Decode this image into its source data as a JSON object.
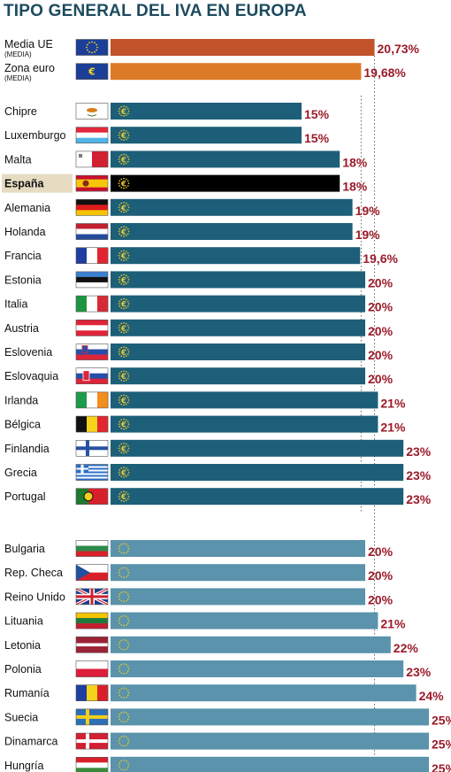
{
  "chart_data": {
    "type": "bar",
    "orientation": "horizontal",
    "title": "TIPO GENERAL DEL IVA EN EUROPA",
    "xlim": [
      0,
      25
    ],
    "colors": {
      "media_ue": "#c0532a",
      "zona_euro": "#dd7a28",
      "euro_zone_countries": "#1d5f78",
      "spain": "#000000",
      "non_euro_countries": "#5a93ab",
      "value_text": "#9b1b2a",
      "highlight_bg": "#e6dcc2",
      "reference_line": "#666666"
    },
    "reference_lines": [
      20.73,
      19.68
    ],
    "groups": [
      {
        "name": "averages",
        "rows": [
          {
            "label": "Media UE",
            "sublabel": "(MEDIA)",
            "value": 20.73,
            "value_label": "20,73%",
            "flag": "eu-flag",
            "color": "media_ue"
          },
          {
            "label": "Zona euro",
            "sublabel": "(MEDIA)",
            "value": 19.68,
            "value_label": "19,68%",
            "flag": "euro-symbol-flag",
            "color": "zona_euro"
          }
        ]
      },
      {
        "name": "eurozone",
        "rows": [
          {
            "label": "Chipre",
            "value": 15,
            "value_label": "15%",
            "flag": "cyprus-flag"
          },
          {
            "label": "Luxemburgo",
            "value": 15,
            "value_label": "15%",
            "flag": "luxembourg-flag"
          },
          {
            "label": "Malta",
            "value": 18,
            "value_label": "18%",
            "flag": "malta-flag"
          },
          {
            "label": "España",
            "value": 18,
            "value_label": "18%",
            "flag": "spain-flag",
            "highlight": true
          },
          {
            "label": "Alemania",
            "value": 19,
            "value_label": "19%",
            "flag": "germany-flag"
          },
          {
            "label": "Holanda",
            "value": 19,
            "value_label": "19%",
            "flag": "netherlands-flag"
          },
          {
            "label": "Francia",
            "value": 19.6,
            "value_label": "19,6%",
            "flag": "france-flag"
          },
          {
            "label": "Estonia",
            "value": 20,
            "value_label": "20%",
            "flag": "estonia-flag"
          },
          {
            "label": "Italia",
            "value": 20,
            "value_label": "20%",
            "flag": "italy-flag"
          },
          {
            "label": "Austria",
            "value": 20,
            "value_label": "20%",
            "flag": "austria-flag"
          },
          {
            "label": "Eslovenia",
            "value": 20,
            "value_label": "20%",
            "flag": "slovenia-flag"
          },
          {
            "label": "Eslovaquia",
            "value": 20,
            "value_label": "20%",
            "flag": "slovakia-flag"
          },
          {
            "label": "Irlanda",
            "value": 21,
            "value_label": "21%",
            "flag": "ireland-flag"
          },
          {
            "label": "Bélgica",
            "value": 21,
            "value_label": "21%",
            "flag": "belgium-flag"
          },
          {
            "label": "Finlandia",
            "value": 23,
            "value_label": "23%",
            "flag": "finland-flag"
          },
          {
            "label": "Grecia",
            "value": 23,
            "value_label": "23%",
            "flag": "greece-flag"
          },
          {
            "label": "Portugal",
            "value": 23,
            "value_label": "23%",
            "flag": "portugal-flag"
          }
        ]
      },
      {
        "name": "non_eurozone",
        "rows": [
          {
            "label": "Bulgaria",
            "value": 20,
            "value_label": "20%",
            "flag": "bulgaria-flag"
          },
          {
            "label": "Rep. Checa",
            "value": 20,
            "value_label": "20%",
            "flag": "czech-flag"
          },
          {
            "label": "Reino Unido",
            "value": 20,
            "value_label": "20%",
            "flag": "uk-flag"
          },
          {
            "label": "Lituania",
            "value": 21,
            "value_label": "21%",
            "flag": "lithuania-flag"
          },
          {
            "label": "Letonia",
            "value": 22,
            "value_label": "22%",
            "flag": "latvia-flag"
          },
          {
            "label": "Polonia",
            "value": 23,
            "value_label": "23%",
            "flag": "poland-flag"
          },
          {
            "label": "Rumanía",
            "value": 24,
            "value_label": "24%",
            "flag": "romania-flag"
          },
          {
            "label": "Suecia",
            "value": 25,
            "value_label": "25%",
            "flag": "sweden-flag"
          },
          {
            "label": "Dinamarca",
            "value": 25,
            "value_label": "25%",
            "flag": "denmark-flag"
          },
          {
            "label": "Hungría",
            "value": 25,
            "value_label": "25%",
            "flag": "hungary-flag"
          }
        ]
      }
    ]
  }
}
